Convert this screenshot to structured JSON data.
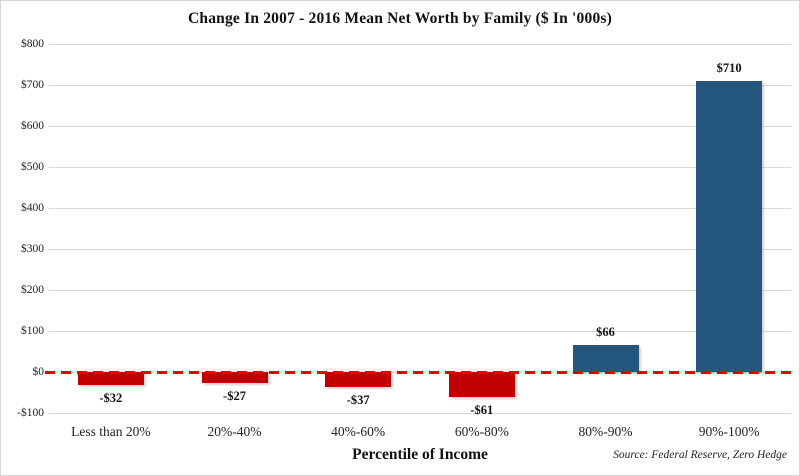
{
  "chart_data": {
    "type": "bar",
    "title": "Change In 2007 - 2016 Mean Net Worth by Family ($ In '000s)",
    "xlabel": "Percentile of Income",
    "ylabel": "",
    "categories": [
      "Less than 20%",
      "20%-40%",
      "40%-60%",
      "60%-80%",
      "80%-90%",
      "90%-100%"
    ],
    "values": [
      -32,
      -27,
      -37,
      -61,
      66,
      710
    ],
    "value_labels": [
      "-$32",
      "-$27",
      "-$37",
      "-$61",
      "$66",
      "$710"
    ],
    "ylim": [
      -100,
      800
    ],
    "yticks": [
      {
        "v": 800,
        "label": "$800"
      },
      {
        "v": 700,
        "label": "$700"
      },
      {
        "v": 600,
        "label": "$600"
      },
      {
        "v": 500,
        "label": "$500"
      },
      {
        "v": 400,
        "label": "$400"
      },
      {
        "v": 300,
        "label": "$300"
      },
      {
        "v": 200,
        "label": "$200"
      },
      {
        "v": 100,
        "label": "$100"
      },
      {
        "v": 0,
        "label": "$0"
      },
      {
        "v": -100,
        "label": "-$100"
      }
    ],
    "grid": "horizontal",
    "legend": "none",
    "zero_line": {
      "value": 0,
      "style": "dashed",
      "color": "#e60000"
    },
    "colors": {
      "negative_bar": "#c00000",
      "positive_bar": "#25567e",
      "gridline": "#d9d9d9",
      "text": "#111111"
    },
    "source": "Source: Federal Reserve, Zero Hedge"
  }
}
